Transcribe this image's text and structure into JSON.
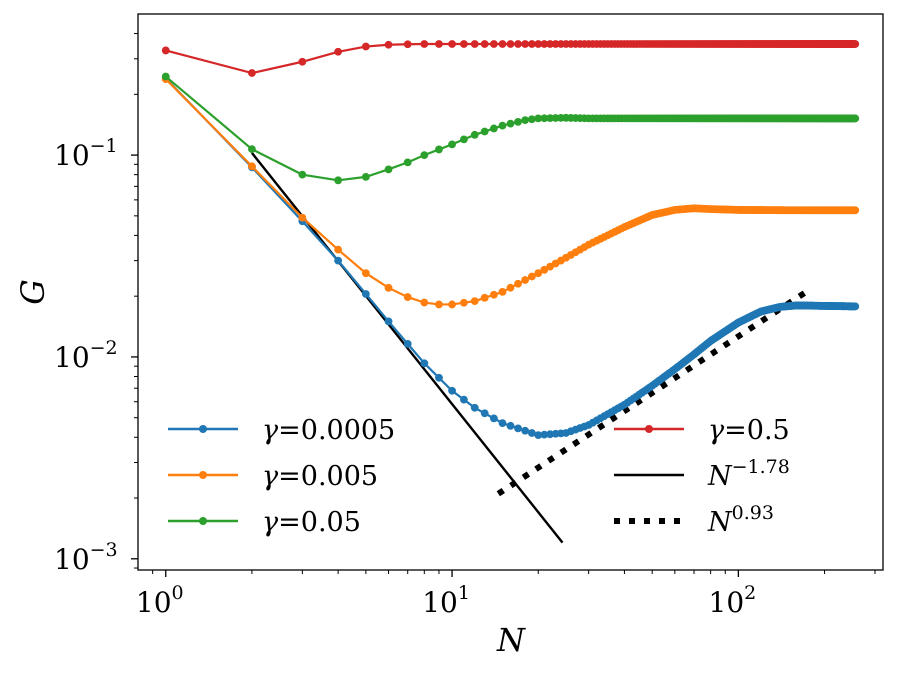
{
  "chart_data": {
    "type": "line",
    "scale": {
      "x": "log",
      "y": "log"
    },
    "xlabel": "N",
    "ylabel": "G",
    "xlim": [
      0.8,
      320
    ],
    "ylim": [
      0.00088,
      0.5
    ],
    "xticks": [
      {
        "base": "10",
        "exp": "0",
        "value": 1
      },
      {
        "base": "10",
        "exp": "1",
        "value": 10
      },
      {
        "base": "10",
        "exp": "2",
        "value": 100
      }
    ],
    "yticks": [
      {
        "base": "10",
        "exp": "−3",
        "value": 0.001
      },
      {
        "base": "10",
        "exp": "−2",
        "value": 0.01
      },
      {
        "base": "10",
        "exp": "−1",
        "value": 0.1
      }
    ],
    "series": [
      {
        "name": "γ=0.0005",
        "symbol": "γ",
        "value_text": "=0.0005",
        "color": "#1f77b4",
        "points": [
          [
            1,
            0.24
          ],
          [
            2,
            0.087
          ],
          [
            3,
            0.047
          ],
          [
            4,
            0.03
          ],
          [
            5,
            0.0205
          ],
          [
            6,
            0.015
          ],
          [
            8,
            0.0093
          ],
          [
            10,
            0.0068
          ],
          [
            12,
            0.0056
          ],
          [
            15,
            0.0047
          ],
          [
            20,
            0.0041
          ],
          [
            25,
            0.0042
          ],
          [
            30,
            0.0046
          ],
          [
            40,
            0.0058
          ],
          [
            50,
            0.0072
          ],
          [
            60,
            0.0087
          ],
          [
            70,
            0.0103
          ],
          [
            80,
            0.012
          ],
          [
            100,
            0.0148
          ],
          [
            120,
            0.0168
          ],
          [
            140,
            0.0177
          ],
          [
            160,
            0.018
          ],
          [
            200,
            0.0179
          ],
          [
            256,
            0.0178
          ]
        ]
      },
      {
        "name": "γ=0.005",
        "symbol": "γ",
        "value_text": "=0.005",
        "color": "#ff7f0e",
        "points": [
          [
            1,
            0.238
          ],
          [
            2,
            0.088
          ],
          [
            3,
            0.049
          ],
          [
            4,
            0.034
          ],
          [
            5,
            0.026
          ],
          [
            6,
            0.022
          ],
          [
            7,
            0.0198
          ],
          [
            8,
            0.0186
          ],
          [
            9,
            0.0182
          ],
          [
            10,
            0.0182
          ],
          [
            12,
            0.0189
          ],
          [
            15,
            0.021
          ],
          [
            20,
            0.026
          ],
          [
            25,
            0.031
          ],
          [
            30,
            0.036
          ],
          [
            40,
            0.044
          ],
          [
            50,
            0.0505
          ],
          [
            60,
            0.0535
          ],
          [
            70,
            0.0545
          ],
          [
            80,
            0.054
          ],
          [
            100,
            0.0535
          ],
          [
            150,
            0.0533
          ],
          [
            256,
            0.0533
          ]
        ]
      },
      {
        "name": "γ=0.05",
        "symbol": "γ",
        "value_text": "=0.05",
        "color": "#2ca02c",
        "points": [
          [
            1,
            0.245
          ],
          [
            2,
            0.107
          ],
          [
            3,
            0.08
          ],
          [
            4,
            0.075
          ],
          [
            5,
            0.078
          ],
          [
            6,
            0.085
          ],
          [
            7,
            0.092
          ],
          [
            8,
            0.1
          ],
          [
            10,
            0.113
          ],
          [
            12,
            0.126
          ],
          [
            15,
            0.14
          ],
          [
            18,
            0.149
          ],
          [
            20,
            0.152
          ],
          [
            25,
            0.153
          ],
          [
            30,
            0.152
          ],
          [
            50,
            0.152
          ],
          [
            100,
            0.152
          ],
          [
            256,
            0.152
          ]
        ]
      },
      {
        "name": "γ=0.5",
        "symbol": "γ",
        "value_text": "=0.5",
        "color": "#d62728",
        "points": [
          [
            1,
            0.33
          ],
          [
            2,
            0.255
          ],
          [
            3,
            0.29
          ],
          [
            4,
            0.325
          ],
          [
            5,
            0.345
          ],
          [
            6,
            0.352
          ],
          [
            7,
            0.354
          ],
          [
            8,
            0.355
          ],
          [
            10,
            0.355
          ],
          [
            20,
            0.355
          ],
          [
            50,
            0.355
          ],
          [
            100,
            0.355
          ],
          [
            256,
            0.355
          ]
        ]
      }
    ],
    "fits": [
      {
        "name": "N^-1.78",
        "base": "N",
        "exp": "−1.78",
        "style": "solid",
        "color": "#000000",
        "x": [
          2,
          24.3
        ],
        "slope": -1.78,
        "y_at_start": 0.1025
      },
      {
        "name": "N^0.93",
        "base": "N",
        "exp": "0.93",
        "style": "dotted",
        "color": "#000000",
        "x": [
          14.5,
          178
        ],
        "slope": 0.93,
        "y_at_start": 0.0021
      }
    ],
    "legend_location": "lower"
  }
}
